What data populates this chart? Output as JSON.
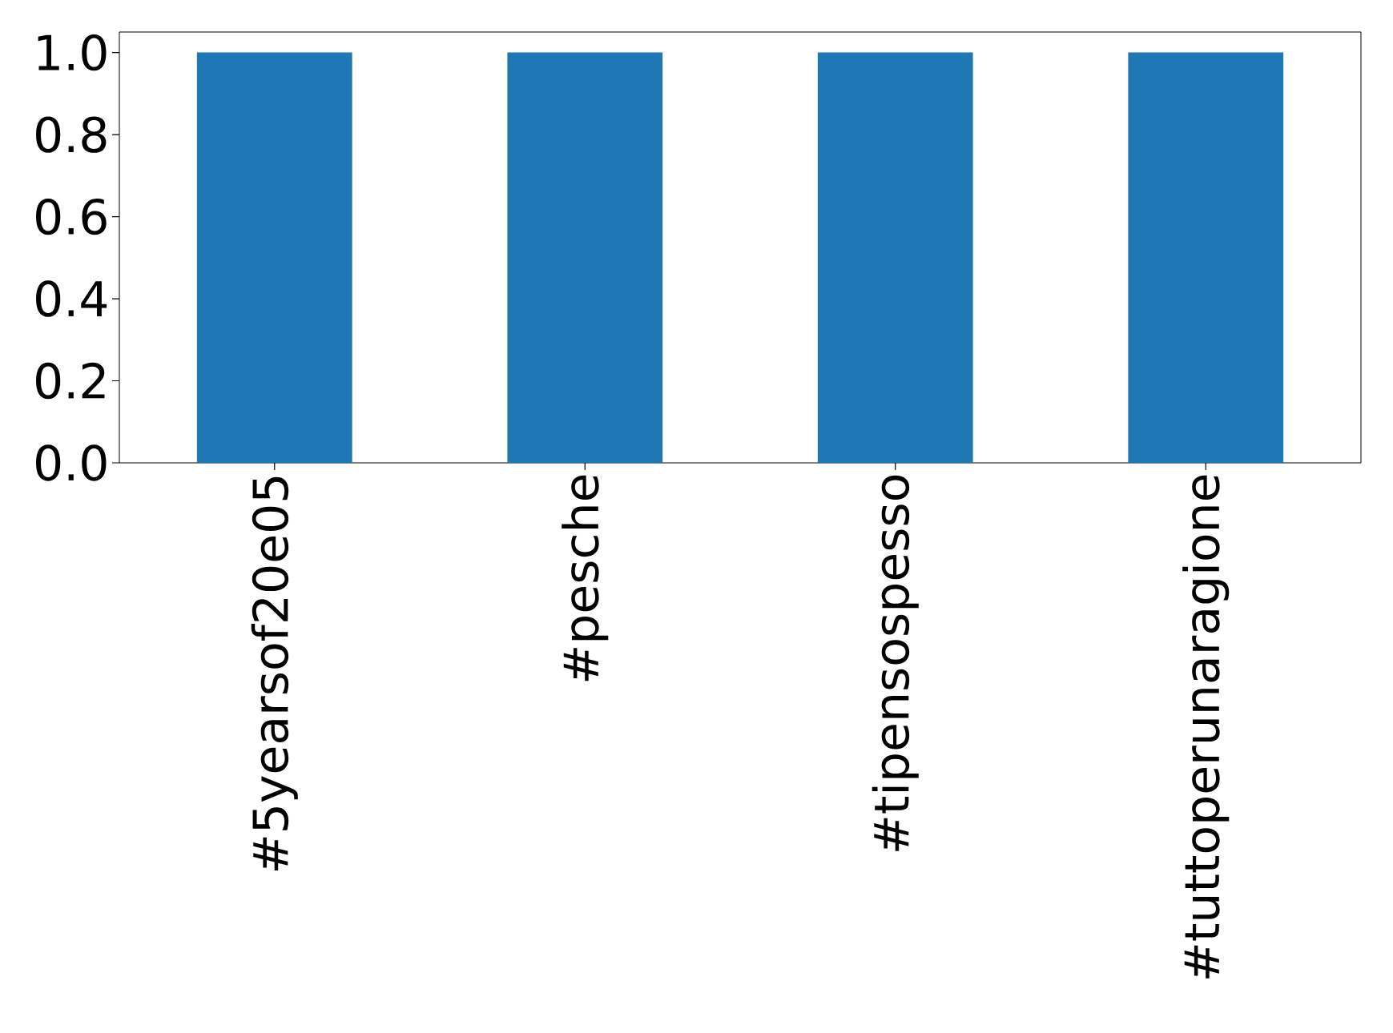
{
  "chart_data": {
    "type": "bar",
    "categories": [
      "#5yearsof20e05",
      "#pesche",
      "#tipensospesso",
      "#tuttoperunaragione"
    ],
    "values": [
      1,
      1,
      1,
      1
    ],
    "color": "#1f77b4",
    "ylim": [
      0,
      1.05
    ],
    "yticks": [
      {
        "value": 0,
        "label": "0.0"
      },
      0.2,
      0.4,
      0.6,
      0.8,
      {
        "value": 1,
        "label": "1.0"
      }
    ]
  }
}
